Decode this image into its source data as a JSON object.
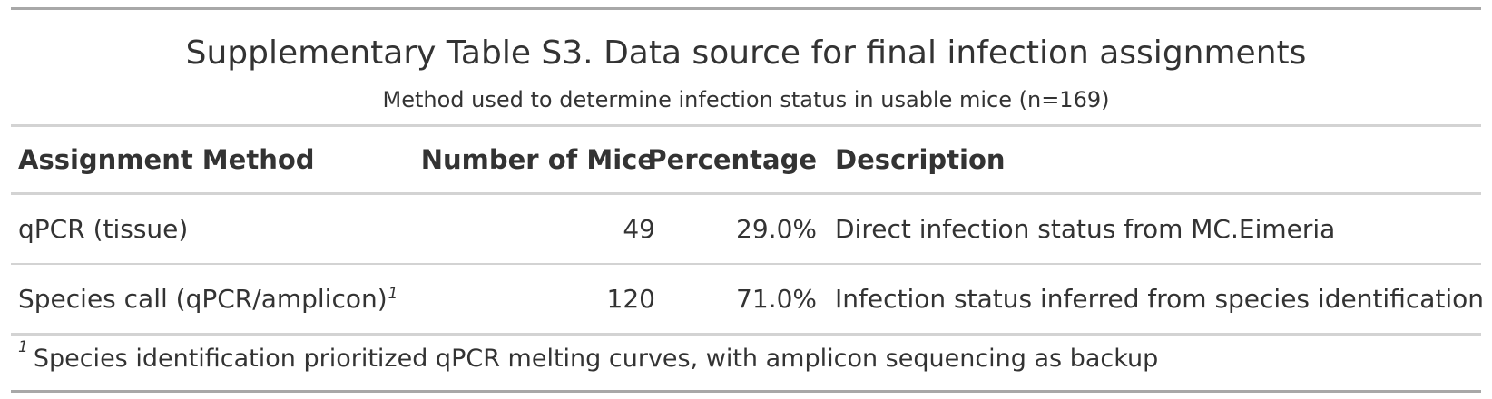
{
  "table": {
    "title": "Supplementary Table S3. Data source for final infection assignments",
    "subtitle": "Method used to determine infection status in usable mice (n=169)",
    "columns": [
      "Assignment Method",
      "Number of Mice",
      "Percentage",
      "Description"
    ],
    "rows": [
      {
        "method": "qPCR (tissue)",
        "method_footnote": "",
        "number": "49",
        "percentage": "29.0%",
        "description": "Direct infection status from MC.Eimeria"
      },
      {
        "method": "Species call (qPCR/amplicon)",
        "method_footnote": "1",
        "number": "120",
        "percentage": "71.0%",
        "description": "Infection status inferred from species identification"
      }
    ],
    "footnote": {
      "marker": "1",
      "text": "Species identification prioritized qPCR melting curves, with amplicon sequencing as backup"
    }
  },
  "colors": {
    "text": "#333333",
    "heavy_rule": "#a8a8a8",
    "light_rule": "#d3d3d3"
  }
}
